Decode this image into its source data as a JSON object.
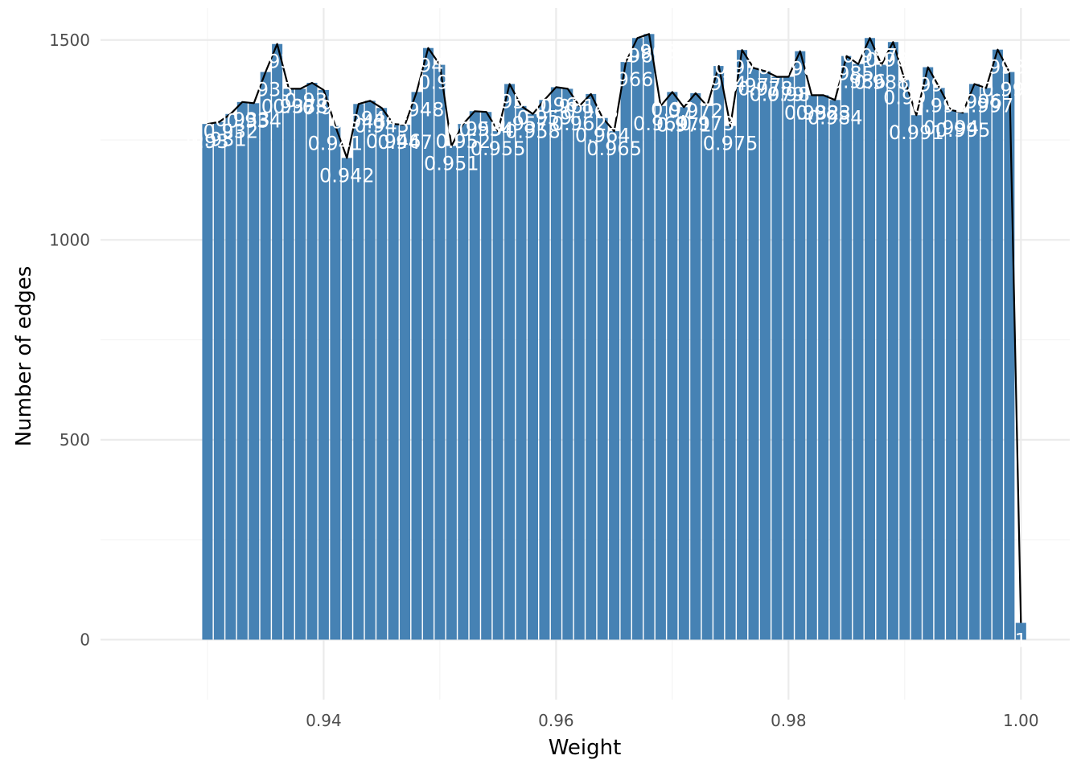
{
  "chart_data": {
    "type": "bar",
    "title": "",
    "xlabel": "Weight",
    "ylabel": "Number of edges",
    "xlim": [
      0.9208,
      1.0042
    ],
    "ylim": [
      -150,
      1580
    ],
    "xticks": [
      0.94,
      0.96,
      0.98,
      1.0
    ],
    "xtick_labels": [
      "0.94",
      "0.96",
      "0.98",
      "1.00"
    ],
    "yticks": [
      0,
      500,
      1000,
      1500
    ],
    "ytick_labels": [
      "0",
      "500",
      "1000",
      "1500"
    ],
    "grid": true,
    "bar_color": "#4682b4",
    "line_color": "#000000",
    "label_color": "#ffffff",
    "series": [
      {
        "x": [
          0.93,
          0.931,
          0.932,
          0.933,
          0.934,
          0.935,
          0.936,
          0.937,
          0.938,
          0.939,
          0.94,
          0.941,
          0.942,
          0.943,
          0.944,
          0.945,
          0.946,
          0.947,
          0.948,
          0.949,
          0.95,
          0.951,
          0.952,
          0.953,
          0.954,
          0.955,
          0.956,
          0.957,
          0.958,
          0.959,
          0.96,
          0.961,
          0.962,
          0.963,
          0.964,
          0.965,
          0.966,
          0.967,
          0.968,
          0.969,
          0.97,
          0.971,
          0.972,
          0.973,
          0.974,
          0.975,
          0.976,
          0.977,
          0.978,
          0.979,
          0.98,
          0.981,
          0.982,
          0.983,
          0.984,
          0.985,
          0.986,
          0.987,
          0.988,
          0.989,
          0.99,
          0.991,
          0.992,
          0.993,
          0.994,
          0.995,
          0.996,
          0.997,
          0.998,
          0.999,
          1.0
        ],
        "values": [
          1290,
          1295,
          1315,
          1345,
          1342,
          1420,
          1490,
          1378,
          1378,
          1393,
          1375,
          1285,
          1205,
          1340,
          1348,
          1330,
          1290,
          1288,
          1370,
          1480,
          1438,
          1235,
          1290,
          1322,
          1320,
          1272,
          1390,
          1335,
          1315,
          1350,
          1382,
          1378,
          1335,
          1365,
          1305,
          1272,
          1445,
          1505,
          1515,
          1335,
          1370,
          1332,
          1367,
          1335,
          1435,
          1285,
          1475,
          1430,
          1422,
          1408,
          1408,
          1472,
          1362,
          1362,
          1350,
          1460,
          1440,
          1505,
          1438,
          1495,
          1400,
          1312,
          1432,
          1380,
          1325,
          1318,
          1390,
          1380,
          1476,
          1420,
          42
        ],
        "labels": [
          "0.93",
          "0.931",
          "0.932",
          "0.933",
          "0.934",
          "0.935",
          "0.936",
          "0.937",
          "0.938",
          "0.939",
          "0.94",
          "0.941",
          "0.942",
          "0.943",
          "0.944",
          "0.945",
          "0.946",
          "0.947",
          "0.948",
          "0.949",
          "0.95",
          "0.951",
          "0.952",
          "0.953",
          "0.954",
          "0.955",
          "0.956",
          "0.957",
          "0.958",
          "0.959",
          "0.96",
          "0.961",
          "0.962",
          "0.963",
          "0.964",
          "0.965",
          "0.966",
          "0.967",
          "0.968",
          "0.969",
          "0.97",
          "0.971",
          "0.972",
          "0.973",
          "0.974",
          "0.975",
          "0.976",
          "0.977",
          "0.978",
          "0.979",
          "0.98",
          "0.981",
          "0.982",
          "0.983",
          "0.984",
          "0.985",
          "0.986",
          "0.987",
          "0.988",
          "0.989",
          "0.99",
          "0.991",
          "0.992",
          "0.993",
          "0.994",
          "0.995",
          "0.996",
          "0.997",
          "0.998",
          "0.999",
          "1"
        ]
      }
    ]
  }
}
